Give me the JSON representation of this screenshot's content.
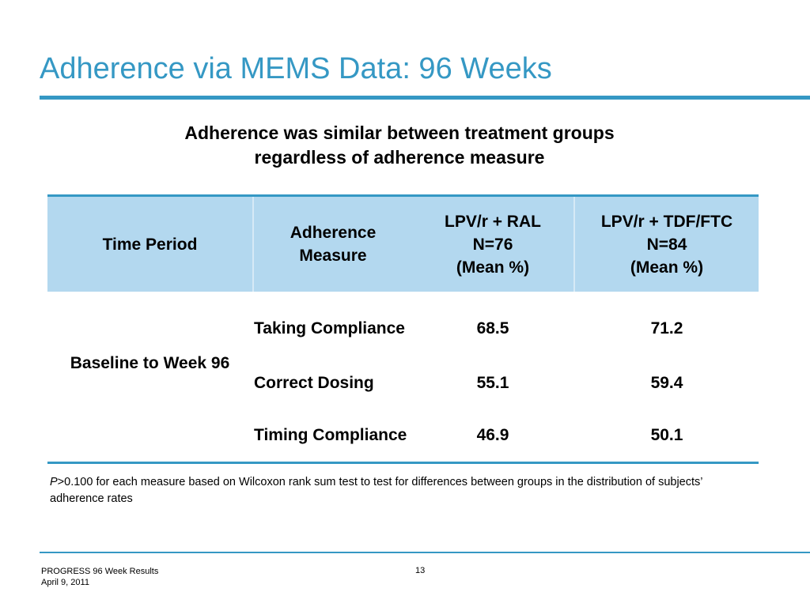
{
  "slide": {
    "title": "Adherence via MEMS Data: 96 Weeks",
    "subtitle_line1": "Adherence was similar between treatment groups",
    "subtitle_line2": "regardless of adherence measure"
  },
  "table": {
    "headers": {
      "time_period": "Time Period",
      "measure_line1": "Adherence",
      "measure_line2": "Measure",
      "group1_line1": "LPV/r + RAL",
      "group1_line2": "N=76",
      "group1_line3": "(Mean %)",
      "group2_line1": "LPV/r + TDF/FTC",
      "group2_line2": "N=84",
      "group2_line3": "(Mean %)"
    },
    "time_period_value": "Baseline to Week 96",
    "rows": [
      {
        "measure": "Taking Compliance",
        "group1": "68.5",
        "group2": "71.2"
      },
      {
        "measure": "Correct Dosing",
        "group1": "55.1",
        "group2": "59.4"
      },
      {
        "measure": "Timing Compliance",
        "group1": "46.9",
        "group2": "50.1"
      }
    ]
  },
  "footnote": {
    "p_symbol": "P",
    "text": ">0.100 for each measure based on Wilcoxon rank sum test to test for differences between groups in the distribution of subjects’ adherence rates"
  },
  "footer": {
    "study": "PROGRESS 96 Week Results",
    "date": "April 9, 2011",
    "page_number": "13"
  },
  "colors": {
    "accent": "#3598c4",
    "header_fill": "#b3d8ef"
  }
}
